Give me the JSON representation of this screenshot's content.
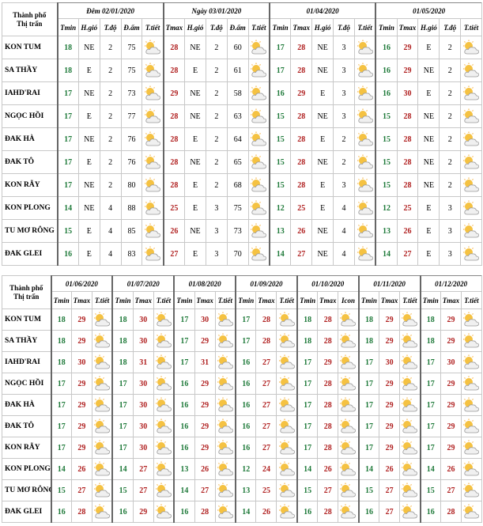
{
  "table1": {
    "city_header": [
      "Thành phố",
      "Thị trấn"
    ],
    "groups": [
      {
        "title": "Đêm 02/01/2020",
        "columns": [
          "Tmin",
          "H.gió",
          "T.độ",
          "Đ.ẩm",
          "T.tiết"
        ]
      },
      {
        "title": "Ngày 03/01/2020",
        "columns": [
          "Tmax",
          "H.gió",
          "T.độ",
          "Đ.ẩm",
          "T.tiết"
        ]
      },
      {
        "title": "01/04/2020",
        "columns": [
          "Tmin",
          "Tmax",
          "H.gió",
          "T.độ",
          "T.tiết"
        ]
      },
      {
        "title": "01/05/2020",
        "columns": [
          "Tmin",
          "Tmax",
          "H.gió",
          "T.độ",
          "T.tiết"
        ]
      }
    ],
    "rows": [
      {
        "city": "KON TUM",
        "values": [
          [
            18,
            "NE",
            2,
            75
          ],
          [
            28,
            "NE",
            2,
            60
          ],
          [
            17,
            28,
            "NE",
            3
          ],
          [
            16,
            29,
            "E",
            2
          ]
        ]
      },
      {
        "city": "SA THẦY",
        "values": [
          [
            18,
            "E",
            2,
            75
          ],
          [
            28,
            "E",
            2,
            61
          ],
          [
            17,
            28,
            "NE",
            3
          ],
          [
            16,
            29,
            "NE",
            2
          ]
        ]
      },
      {
        "city": "IAHD'RAI",
        "values": [
          [
            17,
            "NE",
            2,
            73
          ],
          [
            29,
            "NE",
            2,
            58
          ],
          [
            16,
            29,
            "E",
            3
          ],
          [
            16,
            30,
            "E",
            2
          ]
        ]
      },
      {
        "city": "NGỌC HỒI",
        "values": [
          [
            17,
            "E",
            2,
            77
          ],
          [
            28,
            "NE",
            2,
            63
          ],
          [
            15,
            28,
            "NE",
            3
          ],
          [
            15,
            28,
            "NE",
            2
          ]
        ]
      },
      {
        "city": "ĐAK HÀ",
        "values": [
          [
            17,
            "NE",
            2,
            76
          ],
          [
            28,
            "E",
            2,
            64
          ],
          [
            15,
            28,
            "E",
            2
          ],
          [
            15,
            28,
            "NE",
            2
          ]
        ]
      },
      {
        "city": "ĐAK TÔ",
        "values": [
          [
            17,
            "E",
            2,
            76
          ],
          [
            28,
            "NE",
            2,
            65
          ],
          [
            15,
            28,
            "NE",
            2
          ],
          [
            15,
            28,
            "NE",
            2
          ]
        ]
      },
      {
        "city": "KON RẪY",
        "values": [
          [
            17,
            "NE",
            2,
            80
          ],
          [
            28,
            "E",
            2,
            68
          ],
          [
            15,
            28,
            "E",
            3
          ],
          [
            15,
            28,
            "NE",
            2
          ]
        ]
      },
      {
        "city": "KON PLONG",
        "values": [
          [
            14,
            "NE",
            4,
            88
          ],
          [
            25,
            "E",
            3,
            75
          ],
          [
            12,
            25,
            "E",
            4
          ],
          [
            12,
            25,
            "E",
            3
          ]
        ]
      },
      {
        "city": "TU MƠ RÔNG",
        "values": [
          [
            15,
            "E",
            4,
            85
          ],
          [
            26,
            "NE",
            3,
            73
          ],
          [
            13,
            26,
            "NE",
            4
          ],
          [
            13,
            26,
            "E",
            3
          ]
        ]
      },
      {
        "city": "ĐAK GLEI",
        "values": [
          [
            16,
            "E",
            4,
            83
          ],
          [
            27,
            "E",
            3,
            70
          ],
          [
            14,
            27,
            "NE",
            4
          ],
          [
            14,
            27,
            "E",
            3
          ]
        ]
      }
    ]
  },
  "table2": {
    "city_header": [
      "Thành phố",
      "Thị trấn"
    ],
    "groups": [
      {
        "title": "01/06/2020",
        "columns": [
          "Tmin",
          "Tmax",
          "T.tiết"
        ]
      },
      {
        "title": "01/07/2020",
        "columns": [
          "Tmin",
          "Tmax",
          "T.tiết"
        ]
      },
      {
        "title": "01/08/2020",
        "columns": [
          "Tmin",
          "Tmax",
          "T.tiết"
        ]
      },
      {
        "title": "01/09/2020",
        "columns": [
          "Tmin",
          "Tmax",
          "T.tiết"
        ]
      },
      {
        "title": "01/10/2020",
        "columns": [
          "Tmin",
          "Tmax",
          "Icon"
        ]
      },
      {
        "title": "01/11/2020",
        "columns": [
          "Tmin",
          "Tmax",
          "T.tiết"
        ]
      },
      {
        "title": "01/12/2020",
        "columns": [
          "Tmin",
          "Tmax",
          "T.tiết"
        ]
      }
    ],
    "rows": [
      {
        "city": "KON TUM",
        "values": [
          [
            18,
            29
          ],
          [
            18,
            30
          ],
          [
            17,
            30
          ],
          [
            17,
            28
          ],
          [
            18,
            28
          ],
          [
            18,
            29
          ],
          [
            18,
            29
          ]
        ]
      },
      {
        "city": "SA THẦY",
        "values": [
          [
            18,
            29
          ],
          [
            18,
            30
          ],
          [
            17,
            29
          ],
          [
            17,
            28
          ],
          [
            18,
            28
          ],
          [
            18,
            29
          ],
          [
            18,
            29
          ]
        ]
      },
      {
        "city": "IAHD'RAI",
        "values": [
          [
            18,
            30
          ],
          [
            18,
            31
          ],
          [
            17,
            31
          ],
          [
            16,
            27
          ],
          [
            17,
            29
          ],
          [
            17,
            30
          ],
          [
            17,
            30
          ]
        ]
      },
      {
        "city": "NGỌC HỒI",
        "values": [
          [
            17,
            29
          ],
          [
            17,
            30
          ],
          [
            16,
            29
          ],
          [
            16,
            27
          ],
          [
            17,
            28
          ],
          [
            17,
            29
          ],
          [
            17,
            29
          ]
        ]
      },
      {
        "city": "ĐAK HÀ",
        "values": [
          [
            17,
            29
          ],
          [
            17,
            30
          ],
          [
            16,
            29
          ],
          [
            16,
            27
          ],
          [
            17,
            28
          ],
          [
            17,
            29
          ],
          [
            17,
            29
          ]
        ]
      },
      {
        "city": "ĐAK TÔ",
        "values": [
          [
            17,
            29
          ],
          [
            17,
            30
          ],
          [
            16,
            29
          ],
          [
            16,
            27
          ],
          [
            17,
            28
          ],
          [
            17,
            29
          ],
          [
            17,
            29
          ]
        ]
      },
      {
        "city": "KON RẪY",
        "values": [
          [
            17,
            29
          ],
          [
            17,
            30
          ],
          [
            16,
            29
          ],
          [
            16,
            27
          ],
          [
            17,
            28
          ],
          [
            17,
            29
          ],
          [
            17,
            29
          ]
        ]
      },
      {
        "city": "KON PLONG",
        "values": [
          [
            14,
            26
          ],
          [
            14,
            27
          ],
          [
            13,
            26
          ],
          [
            12,
            24
          ],
          [
            14,
            26
          ],
          [
            14,
            26
          ],
          [
            14,
            26
          ]
        ]
      },
      {
        "city": "TU MƠ RÔNG",
        "values": [
          [
            15,
            27
          ],
          [
            15,
            27
          ],
          [
            14,
            27
          ],
          [
            13,
            25
          ],
          [
            15,
            27
          ],
          [
            15,
            27
          ],
          [
            15,
            27
          ]
        ]
      },
      {
        "city": "ĐAK GLEI",
        "values": [
          [
            16,
            28
          ],
          [
            16,
            29
          ],
          [
            16,
            28
          ],
          [
            14,
            26
          ],
          [
            16,
            28
          ],
          [
            16,
            27
          ],
          [
            16,
            28
          ]
        ]
      }
    ]
  }
}
